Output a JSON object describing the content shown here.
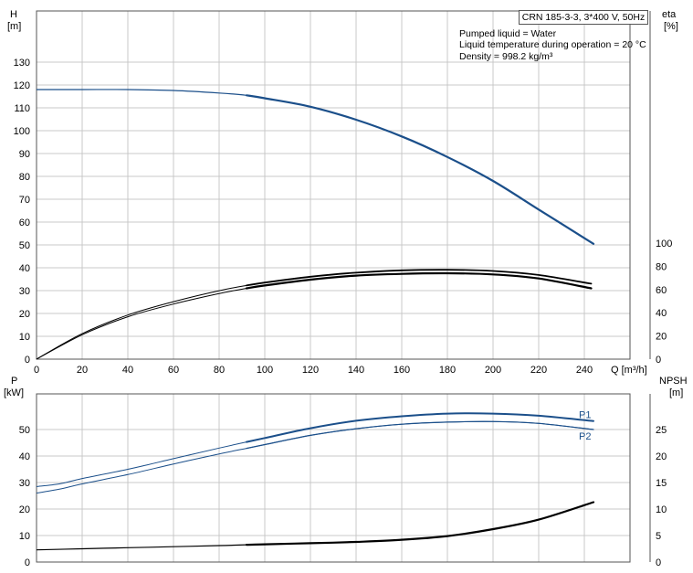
{
  "header": {
    "model": "CRN 185-3-3, 3*400 V, 50Hz",
    "lines": [
      "Pumped liquid = Water",
      "Liquid temperature during operation = 20 °C",
      "Density = 998.2 kg/m³"
    ]
  },
  "colors": {
    "dark": "#000000",
    "blue": "#1b4f8a",
    "grid": "#c8c8c8"
  },
  "chart_data": [
    {
      "type": "line",
      "title": "",
      "left_axis": {
        "label_lines": [
          "H",
          "[m]"
        ],
        "range": [
          0,
          130
        ],
        "ticks": [
          0,
          10,
          20,
          30,
          40,
          50,
          60,
          70,
          80,
          90,
          100,
          110,
          120,
          130
        ]
      },
      "right_axis": {
        "label_lines": [
          "eta",
          "[%]"
        ],
        "range": [
          0,
          100
        ],
        "ticks": [
          0,
          20,
          40,
          60,
          80,
          100
        ]
      },
      "x_axis": {
        "label": "Q [m³/h]",
        "range": [
          0,
          260
        ],
        "ticks": [
          0,
          20,
          40,
          60,
          80,
          100,
          120,
          140,
          160,
          180,
          200,
          220,
          240
        ]
      },
      "grid": true,
      "series": [
        {
          "axis": "left",
          "color": "blue",
          "x": [
            0,
            20,
            40,
            60,
            80,
            92,
            100,
            120,
            140,
            160,
            180,
            200,
            220,
            244
          ],
          "y": [
            118,
            118,
            118,
            117.6,
            116.5,
            115.5,
            114.2,
            110.5,
            104.8,
            97.5,
            88.5,
            78,
            65.5,
            50.5
          ]
        },
        {
          "axis": "right",
          "color": "dark",
          "x": [
            0,
            20,
            40,
            60,
            80,
            92,
            100,
            120,
            140,
            160,
            180,
            200,
            220,
            243
          ],
          "y": [
            0,
            22,
            38,
            49.5,
            59,
            63.5,
            66,
            71,
            74.5,
            76.5,
            77,
            76,
            72.5,
            65
          ]
        },
        {
          "axis": "right",
          "color": "dark",
          "x": [
            0,
            20,
            40,
            60,
            80,
            92,
            100,
            120,
            140,
            160,
            180,
            200,
            220,
            243
          ],
          "y": [
            0,
            21,
            36.5,
            47.5,
            56.5,
            61,
            63.5,
            68.5,
            72,
            73.5,
            74,
            73,
            69.5,
            61
          ]
        }
      ]
    },
    {
      "type": "line",
      "left_axis": {
        "label_lines": [
          "P",
          "[kW]"
        ],
        "range": [
          0,
          60
        ],
        "ticks": [
          0,
          10,
          20,
          30,
          40,
          50
        ]
      },
      "right_axis": {
        "label_lines": [
          "NPSH",
          "[m]"
        ],
        "range": [
          0,
          30
        ],
        "ticks": [
          0,
          5,
          10,
          15,
          20,
          25
        ]
      },
      "grid": true,
      "series": [
        {
          "name": "P1",
          "axis": "left",
          "color": "blue",
          "x": [
            0,
            10,
            20,
            40,
            60,
            80,
            92,
            100,
            120,
            140,
            160,
            180,
            200,
            220,
            244
          ],
          "y": [
            28.5,
            29.5,
            31.5,
            35,
            39,
            43,
            45.3,
            46.8,
            50.5,
            53.3,
            55,
            56,
            56,
            55.2,
            53.2
          ]
        },
        {
          "name": "P2",
          "axis": "left",
          "color": "blue",
          "x": [
            0,
            10,
            20,
            40,
            60,
            80,
            92,
            100,
            120,
            140,
            160,
            180,
            200,
            220,
            244
          ],
          "y": [
            26,
            27.5,
            29.5,
            33,
            37,
            40.8,
            42.9,
            44.3,
            47.8,
            50.3,
            52,
            52.8,
            53,
            52.3,
            50
          ]
        },
        {
          "axis": "right",
          "color": "dark",
          "x": [
            0,
            20,
            40,
            60,
            80,
            92,
            100,
            120,
            140,
            160,
            180,
            200,
            220,
            244
          ],
          "y": [
            2.3,
            2.5,
            2.7,
            2.9,
            3.1,
            3.25,
            3.35,
            3.55,
            3.8,
            4.2,
            4.9,
            6.2,
            8,
            11.3
          ]
        }
      ]
    }
  ]
}
